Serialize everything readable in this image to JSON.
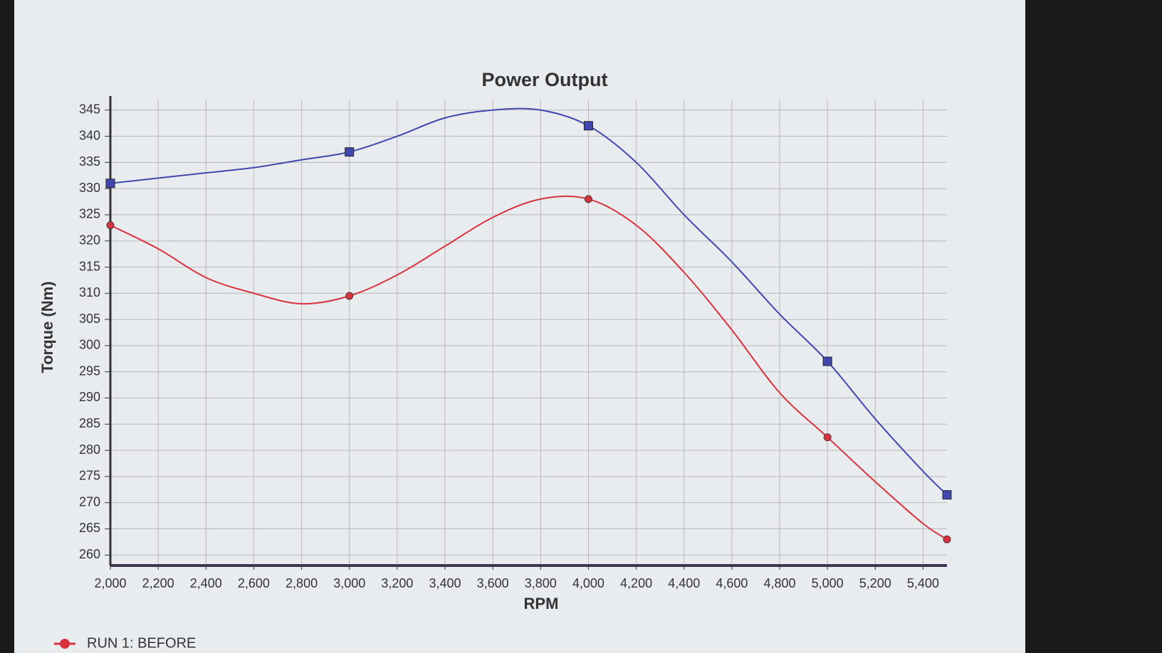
{
  "chart_data": {
    "type": "line",
    "title": "Power Output",
    "xlabel": "RPM",
    "ylabel": "Torque (Nm)",
    "x": [
      2000,
      2200,
      2400,
      2600,
      2800,
      3000,
      3200,
      3400,
      3600,
      3800,
      4000,
      4200,
      4400,
      4600,
      4800,
      5000,
      5200,
      5400,
      5500
    ],
    "series": [
      {
        "name": "RUN 1: BEFORE",
        "color": "#d8323f",
        "marker": "circle",
        "values": [
          323,
          318.5,
          313,
          310,
          308,
          309.5,
          313.5,
          319,
          324.5,
          328,
          328,
          323,
          314,
          303,
          291,
          282.5,
          274,
          266,
          263
        ]
      },
      {
        "color": "#4048b0",
        "marker": "square",
        "values": [
          331,
          332,
          333,
          334,
          335.5,
          337,
          340,
          343.5,
          345,
          345,
          342,
          335,
          325,
          316,
          306,
          297,
          286,
          276,
          271.5
        ]
      }
    ],
    "xlim": [
      2000,
      5500
    ],
    "xticks": [
      {
        "value": 2000,
        "label": "2,000"
      },
      {
        "value": 2200,
        "label": "2,200"
      },
      {
        "value": 2400,
        "label": "2,400"
      },
      {
        "value": 2600,
        "label": "2,600"
      },
      {
        "value": 2800,
        "label": "2,800"
      },
      {
        "value": 3000,
        "label": "3,000"
      },
      {
        "value": 3200,
        "label": "3,200"
      },
      {
        "value": 3400,
        "label": "3,400"
      },
      {
        "value": 3600,
        "label": "3,600"
      },
      {
        "value": 3800,
        "label": "3,800"
      },
      {
        "value": 4000,
        "label": "4,000"
      },
      {
        "value": 4200,
        "label": "4,200"
      },
      {
        "value": 4400,
        "label": "4,400"
      },
      {
        "value": 4600,
        "label": "4,600"
      },
      {
        "value": 4800,
        "label": "4,800"
      },
      {
        "value": 5000,
        "label": "5,000"
      },
      {
        "value": 5200,
        "label": "5,200"
      },
      {
        "value": 5400,
        "label": "5,400"
      }
    ],
    "ylim": [
      258,
      347
    ],
    "yticks": [
      260,
      265,
      270,
      275,
      280,
      285,
      290,
      295,
      300,
      305,
      310,
      315,
      320,
      325,
      330,
      335,
      340,
      345
    ],
    "grid": true
  }
}
